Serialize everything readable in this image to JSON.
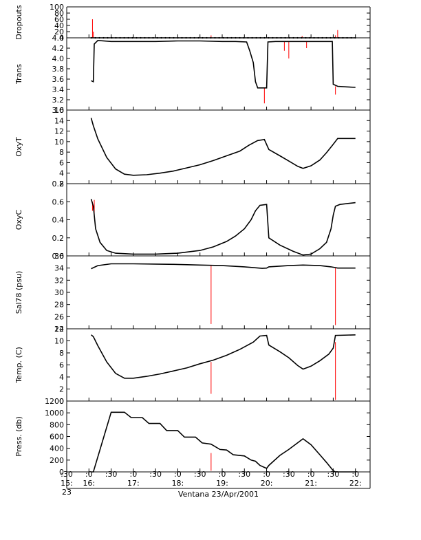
{
  "chart_data": {
    "type": "line",
    "xlabel": "Ventana 23/Apr/2001",
    "x_tick_labels": [
      {
        "t": 15.5,
        "lines": [
          ":30",
          "15:",
          "23"
        ]
      },
      {
        "t": 16.0,
        "lines": [
          ":0",
          "16:"
        ]
      },
      {
        "t": 16.5,
        "lines": [
          ":30"
        ]
      },
      {
        "t": 17.0,
        "lines": [
          ":0",
          "17:"
        ]
      },
      {
        "t": 17.5,
        "lines": [
          ":30"
        ]
      },
      {
        "t": 18.0,
        "lines": [
          ":0",
          "18:"
        ]
      },
      {
        "t": 18.5,
        "lines": [
          ":30"
        ]
      },
      {
        "t": 19.0,
        "lines": [
          ":0",
          "19:"
        ]
      },
      {
        "t": 19.5,
        "lines": [
          ":30"
        ]
      },
      {
        "t": 20.0,
        "lines": [
          ":0",
          "20:"
        ]
      },
      {
        "t": 20.5,
        "lines": [
          ":30"
        ]
      },
      {
        "t": 21.0,
        "lines": [
          ":0",
          "21:"
        ]
      },
      {
        "t": 21.5,
        "lines": [
          ":30"
        ]
      },
      {
        "t": 22.0,
        "lines": [
          ":0",
          "22:"
        ]
      }
    ],
    "xlim": [
      15.5,
      22.33
    ],
    "x_unit": "hour of day",
    "trace_color": "#000000",
    "spike_color": "#ff0000",
    "panels": [
      {
        "name": "dropouts",
        "ylabel": "Dropouts",
        "ylim": [
          0,
          100
        ],
        "yticks": [
          100,
          80,
          60,
          40,
          20,
          0
        ],
        "ytick_labels": [
          "100",
          "80",
          "60",
          "40",
          "20",
          "0"
        ],
        "points": [
          [
            16.05,
            0
          ],
          [
            22.0,
            0
          ]
        ],
        "spikes": [
          [
            16.08,
            0,
            60
          ],
          [
            16.1,
            0,
            20
          ],
          [
            18.75,
            0,
            8
          ],
          [
            20.8,
            0,
            6
          ],
          [
            21.55,
            0,
            8
          ],
          [
            21.6,
            0,
            25
          ]
        ]
      },
      {
        "name": "trans",
        "ylabel": "Trans",
        "ylim": [
          3.0,
          4.4
        ],
        "yticks": [
          4.4,
          4.2,
          4.0,
          3.8,
          3.6,
          3.4,
          3.2,
          3.0
        ],
        "ytick_labels": [
          "4.4",
          "4.2",
          "4.0",
          "3.8",
          "3.6",
          "3.4",
          "3.2",
          "3.0"
        ],
        "points": [
          [
            16.05,
            3.57
          ],
          [
            16.1,
            3.55
          ],
          [
            16.12,
            4.28
          ],
          [
            16.2,
            4.35
          ],
          [
            16.5,
            4.33
          ],
          [
            17.0,
            4.33
          ],
          [
            17.5,
            4.33
          ],
          [
            18.0,
            4.34
          ],
          [
            18.5,
            4.34
          ],
          [
            19.0,
            4.33
          ],
          [
            19.3,
            4.33
          ],
          [
            19.55,
            4.32
          ],
          [
            19.62,
            4.15
          ],
          [
            19.7,
            3.92
          ],
          [
            19.75,
            3.55
          ],
          [
            19.8,
            3.43
          ],
          [
            19.9,
            3.43
          ],
          [
            20.0,
            3.43
          ],
          [
            20.03,
            4.32
          ],
          [
            20.2,
            4.33
          ],
          [
            20.5,
            4.33
          ],
          [
            21.0,
            4.33
          ],
          [
            21.3,
            4.33
          ],
          [
            21.48,
            4.33
          ],
          [
            21.5,
            3.5
          ],
          [
            21.6,
            3.46
          ],
          [
            21.8,
            3.45
          ],
          [
            22.0,
            3.44
          ]
        ],
        "spikes": [
          [
            19.95,
            3.43,
            3.13
          ],
          [
            20.4,
            4.33,
            4.15
          ],
          [
            20.5,
            4.33,
            4.0
          ],
          [
            20.9,
            4.33,
            4.2
          ],
          [
            21.55,
            3.46,
            3.3
          ]
        ]
      },
      {
        "name": "oxyt",
        "ylabel": "OxyT",
        "ylim": [
          2,
          16
        ],
        "yticks": [
          16,
          14,
          12,
          10,
          8,
          6,
          4,
          2
        ],
        "ytick_labels": [
          "16",
          "14",
          "12",
          "10",
          "8",
          "6",
          "4",
          "2"
        ],
        "points": [
          [
            16.05,
            14.5
          ],
          [
            16.1,
            13
          ],
          [
            16.2,
            10.5
          ],
          [
            16.4,
            7
          ],
          [
            16.6,
            4.8
          ],
          [
            16.8,
            3.8
          ],
          [
            17.0,
            3.6
          ],
          [
            17.3,
            3.7
          ],
          [
            17.6,
            4.0
          ],
          [
            17.9,
            4.4
          ],
          [
            18.2,
            5.0
          ],
          [
            18.5,
            5.6
          ],
          [
            18.8,
            6.4
          ],
          [
            19.1,
            7.3
          ],
          [
            19.4,
            8.2
          ],
          [
            19.6,
            9.3
          ],
          [
            19.8,
            10.2
          ],
          [
            19.95,
            10.4
          ],
          [
            20.05,
            8.5
          ],
          [
            20.3,
            7.3
          ],
          [
            20.5,
            6.3
          ],
          [
            20.7,
            5.3
          ],
          [
            20.82,
            4.9
          ],
          [
            21.0,
            5.4
          ],
          [
            21.2,
            6.5
          ],
          [
            21.35,
            7.9
          ],
          [
            21.5,
            9.5
          ],
          [
            21.6,
            10.6
          ],
          [
            22.0,
            10.6
          ]
        ],
        "spikes": []
      },
      {
        "name": "oxyc",
        "ylabel": "OxyC",
        "ylim": [
          0.0,
          0.8
        ],
        "yticks": [
          0.8,
          0.6,
          0.4,
          0.2,
          0.0
        ],
        "ytick_labels": [
          "0.8",
          "0.6",
          "0.4",
          "0.2",
          "0.0"
        ],
        "points": [
          [
            16.05,
            0.63
          ],
          [
            16.1,
            0.55
          ],
          [
            16.15,
            0.3
          ],
          [
            16.25,
            0.15
          ],
          [
            16.4,
            0.06
          ],
          [
            16.6,
            0.03
          ],
          [
            17.0,
            0.02
          ],
          [
            17.5,
            0.02
          ],
          [
            18.0,
            0.03
          ],
          [
            18.5,
            0.06
          ],
          [
            18.8,
            0.1
          ],
          [
            19.1,
            0.16
          ],
          [
            19.3,
            0.22
          ],
          [
            19.5,
            0.3
          ],
          [
            19.65,
            0.4
          ],
          [
            19.75,
            0.5
          ],
          [
            19.85,
            0.56
          ],
          [
            20.0,
            0.57
          ],
          [
            20.05,
            0.2
          ],
          [
            20.3,
            0.12
          ],
          [
            20.6,
            0.05
          ],
          [
            20.82,
            0.01
          ],
          [
            21.0,
            0.02
          ],
          [
            21.2,
            0.08
          ],
          [
            21.35,
            0.15
          ],
          [
            21.45,
            0.3
          ],
          [
            21.5,
            0.45
          ],
          [
            21.55,
            0.55
          ],
          [
            21.65,
            0.57
          ],
          [
            22.0,
            0.59
          ]
        ],
        "spikes": [
          [
            16.08,
            0.6,
            0.5
          ],
          [
            16.12,
            0.62,
            0.45
          ]
        ]
      },
      {
        "name": "sal78",
        "ylabel": "Sal78 (psu)",
        "ylim": [
          24,
          36
        ],
        "yticks": [
          36,
          34,
          32,
          30,
          28,
          26,
          24
        ],
        "ytick_labels": [
          "36",
          "34",
          "32",
          "30",
          "28",
          "26",
          "24"
        ],
        "points": [
          [
            16.05,
            33.9
          ],
          [
            16.2,
            34.4
          ],
          [
            16.5,
            34.7
          ],
          [
            17.0,
            34.7
          ],
          [
            17.5,
            34.65
          ],
          [
            18.0,
            34.6
          ],
          [
            18.5,
            34.5
          ],
          [
            19.0,
            34.4
          ],
          [
            19.5,
            34.2
          ],
          [
            19.9,
            33.95
          ],
          [
            20.0,
            34.0
          ],
          [
            20.05,
            34.2
          ],
          [
            20.5,
            34.4
          ],
          [
            20.82,
            34.5
          ],
          [
            21.2,
            34.4
          ],
          [
            21.45,
            34.2
          ],
          [
            21.6,
            34.0
          ],
          [
            22.0,
            34.0
          ]
        ],
        "spikes": [
          [
            18.75,
            34.5,
            24.8
          ],
          [
            21.55,
            34.0,
            24.6
          ]
        ]
      },
      {
        "name": "temp",
        "ylabel": "Temp. (C)",
        "ylim": [
          0,
          12
        ],
        "yticks": [
          12,
          10,
          8,
          6,
          4,
          2,
          0
        ],
        "ytick_labels": [
          "12",
          "10",
          "8",
          "6",
          "4",
          "2",
          "0"
        ],
        "points": [
          [
            16.05,
            11.0
          ],
          [
            16.1,
            10.7
          ],
          [
            16.2,
            9.2
          ],
          [
            16.4,
            6.5
          ],
          [
            16.6,
            4.6
          ],
          [
            16.8,
            3.8
          ],
          [
            17.0,
            3.8
          ],
          [
            17.3,
            4.1
          ],
          [
            17.6,
            4.5
          ],
          [
            17.9,
            5.0
          ],
          [
            18.2,
            5.5
          ],
          [
            18.5,
            6.2
          ],
          [
            18.8,
            6.8
          ],
          [
            19.1,
            7.6
          ],
          [
            19.4,
            8.6
          ],
          [
            19.7,
            9.8
          ],
          [
            19.85,
            10.8
          ],
          [
            20.0,
            10.9
          ],
          [
            20.05,
            9.3
          ],
          [
            20.3,
            8.2
          ],
          [
            20.5,
            7.2
          ],
          [
            20.7,
            5.9
          ],
          [
            20.82,
            5.3
          ],
          [
            21.0,
            5.8
          ],
          [
            21.2,
            6.7
          ],
          [
            21.4,
            7.8
          ],
          [
            21.5,
            8.8
          ],
          [
            21.55,
            10.9
          ],
          [
            22.0,
            11.0
          ]
        ],
        "spikes": [
          [
            18.75,
            6.5,
            1.2
          ],
          [
            21.55,
            9.8,
            0.2
          ]
        ]
      },
      {
        "name": "press",
        "ylabel": "Press. (db)",
        "ylim": [
          0,
          1200
        ],
        "yticks": [
          1200,
          1000,
          800,
          600,
          400,
          200,
          0
        ],
        "ytick_labels": [
          "1200",
          "1000",
          "800",
          "600",
          "400",
          "200",
          "0"
        ],
        "points": [
          [
            16.05,
            0
          ],
          [
            16.1,
            0
          ],
          [
            16.5,
            1010
          ],
          [
            16.8,
            1010
          ],
          [
            16.95,
            920
          ],
          [
            17.2,
            920
          ],
          [
            17.35,
            820
          ],
          [
            17.6,
            820
          ],
          [
            17.75,
            700
          ],
          [
            18.0,
            700
          ],
          [
            18.15,
            590
          ],
          [
            18.4,
            590
          ],
          [
            18.55,
            490
          ],
          [
            18.75,
            470
          ],
          [
            18.95,
            380
          ],
          [
            19.1,
            370
          ],
          [
            19.25,
            290
          ],
          [
            19.5,
            270
          ],
          [
            19.65,
            200
          ],
          [
            19.75,
            180
          ],
          [
            19.85,
            110
          ],
          [
            20.0,
            60
          ],
          [
            20.05,
            110
          ],
          [
            20.3,
            280
          ],
          [
            20.5,
            380
          ],
          [
            20.82,
            560
          ],
          [
            21.0,
            460
          ],
          [
            21.2,
            290
          ],
          [
            21.35,
            160
          ],
          [
            21.5,
            20
          ],
          [
            21.55,
            0
          ],
          [
            22.0,
            0
          ]
        ],
        "spikes": [
          [
            18.75,
            320,
            20
          ]
        ]
      }
    ]
  }
}
